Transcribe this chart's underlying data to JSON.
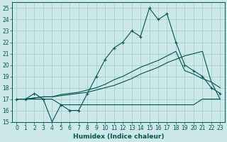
{
  "xlabel": "Humidex (Indice chaleur)",
  "bg_color": "#cce8e8",
  "grid_color": "#99cccc",
  "line_color": "#005555",
  "xlim": [
    -0.5,
    23.5
  ],
  "ylim": [
    15,
    25.5
  ],
  "yticks": [
    15,
    16,
    17,
    18,
    19,
    20,
    21,
    22,
    23,
    24,
    25
  ],
  "xticks": [
    0,
    1,
    2,
    3,
    4,
    5,
    6,
    7,
    8,
    9,
    10,
    11,
    12,
    13,
    14,
    15,
    16,
    17,
    18,
    19,
    20,
    21,
    22,
    23
  ],
  "main_y": [
    17.0,
    17.0,
    17.5,
    17.0,
    15.0,
    16.5,
    16.0,
    16.0,
    17.5,
    19.0,
    20.5,
    21.5,
    22.0,
    23.0,
    22.5,
    25.0,
    24.0,
    24.5,
    22.0,
    20.0,
    19.5,
    19.0,
    18.0,
    17.5
  ],
  "line_flat": [
    17.0,
    17.0,
    17.0,
    17.0,
    17.0,
    16.5,
    16.5,
    16.5,
    16.5,
    16.5,
    16.5,
    16.5,
    16.5,
    16.5,
    16.5,
    16.5,
    16.5,
    16.5,
    16.5,
    16.5,
    16.5,
    17.0,
    17.0,
    17.0
  ],
  "line_diag1": [
    17.0,
    17.0,
    17.1,
    17.2,
    17.2,
    17.3,
    17.4,
    17.5,
    17.6,
    17.8,
    18.0,
    18.2,
    18.5,
    18.8,
    19.2,
    19.5,
    19.8,
    20.2,
    20.5,
    20.8,
    21.0,
    21.2,
    18.5,
    17.0
  ],
  "line_diag2": [
    17.0,
    17.0,
    17.1,
    17.2,
    17.2,
    17.4,
    17.5,
    17.6,
    17.8,
    18.0,
    18.3,
    18.7,
    19.0,
    19.4,
    19.8,
    20.1,
    20.4,
    20.8,
    21.2,
    19.5,
    19.2,
    18.8,
    18.5,
    18.0
  ]
}
